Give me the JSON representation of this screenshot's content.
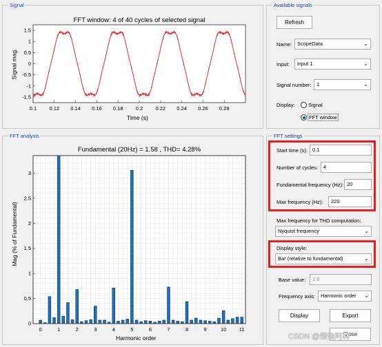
{
  "signal_panel": {
    "title": "Signal",
    "plot_title": "FFT window: 4 of 40 cycles of selected signal",
    "xlabel": "Time (s)",
    "ylabel": "Signal mag.",
    "x_ticks": [
      "0.1",
      "0.12",
      "0.14",
      "0.16",
      "0.18",
      "0.2",
      "0.22",
      "0.24",
      "0.26",
      "0.28"
    ],
    "y_ticks": [
      "1.5",
      "1",
      "0.5",
      "0",
      "-0.5",
      "-1",
      "-1.5"
    ],
    "line_color": "#e03030"
  },
  "available_signals": {
    "title": "Available signals",
    "refresh_label": "Refresh",
    "name_label": "Name:",
    "name_value": "ScopeData",
    "input_label": "Input:",
    "input_value": "input 1",
    "signal_number_label": "Signal number:",
    "signal_number_value": "1",
    "display_label": "Display:",
    "display_options": [
      "Signal",
      "FFT window"
    ],
    "display_selected": "FFT window"
  },
  "fft_analysis": {
    "title": "FFT analysis",
    "plot_title": "Fundamental (20Hz) = 1.58 , THD= 4.28%",
    "xlabel": "Harmonic order",
    "ylabel": "Mag (% of Fundamental)",
    "x_ticks": [
      "0",
      "1",
      "2",
      "3",
      "4",
      "5",
      "6",
      "7",
      "8",
      "9",
      "10",
      "11"
    ],
    "y_ticks": [
      "0",
      "0.5",
      "1",
      "1.5",
      "2",
      "2.5",
      "3"
    ],
    "bar_color": "#1f6fb4"
  },
  "chart_data": {
    "type": "bar",
    "xlabel": "Harmonic order",
    "ylabel": "Mag (% of Fundamental)",
    "title": "Fundamental (20Hz) = 1.58 , THD= 4.28%",
    "xlim": [
      -0.4,
      11.2
    ],
    "ylim": [
      0,
      3.35
    ],
    "x": [
      0,
      0.25,
      0.5,
      0.75,
      1,
      1.25,
      1.5,
      1.75,
      2,
      2.25,
      2.5,
      2.75,
      3,
      3.25,
      3.5,
      3.75,
      4,
      4.25,
      4.5,
      4.75,
      5,
      5.25,
      5.5,
      5.75,
      6,
      6.25,
      6.5,
      6.75,
      7,
      7.25,
      7.5,
      7.75,
      8,
      8.25,
      8.5,
      8.75,
      9,
      9.25,
      9.5,
      9.75,
      10,
      10.25,
      10.5,
      10.75,
      11
    ],
    "values": [
      0.07,
      0.02,
      0.54,
      0.12,
      3.35,
      0.15,
      0.42,
      0.08,
      0.68,
      0.04,
      0.06,
      0.08,
      0.35,
      0.07,
      0.07,
      0.03,
      0.71,
      0.05,
      0.07,
      0.09,
      3.06,
      0.07,
      0.04,
      0.06,
      0.05,
      0.03,
      0.05,
      0.07,
      0.73,
      0.07,
      0.05,
      0.04,
      0.44,
      0.07,
      0.11,
      0.07,
      0.06,
      0.05,
      0.04,
      0.11,
      0.26,
      0.07,
      0.1,
      0.13,
      0.13
    ]
  },
  "fft_settings": {
    "title": "FFT settings",
    "start_time_label": "Start time (s):",
    "start_time_value": "0.1",
    "cycles_label": "Number of cycles:",
    "cycles_value": "4",
    "fund_freq_label": "Fundamental frequency (Hz):",
    "fund_freq_value": "20",
    "max_freq_label": "Max frequency (Hz):",
    "max_freq_value": "220",
    "thd_label": "Max frequency for THD computation:",
    "thd_value": "Nyquist frequency",
    "display_style_label": "Display style:",
    "display_style_value": "Bar (relative to fundamental)",
    "base_value_label": "Base value:",
    "base_value_value": "1.0",
    "freq_axis_label": "Frequency axis:",
    "freq_axis_value": "Harmonic order",
    "display_button": "Display",
    "export_button": "Export",
    "close_button": "Close"
  },
  "watermark": "CSDN @烦恼阿林",
  "highlight_color": "#e62020"
}
